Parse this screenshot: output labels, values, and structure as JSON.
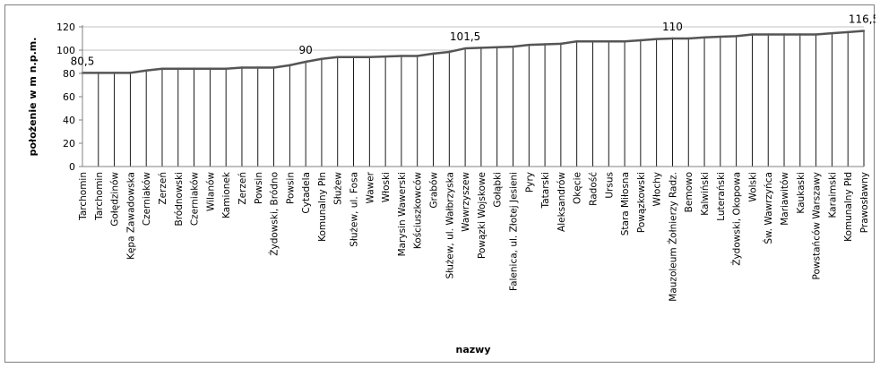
{
  "chart_data": {
    "type": "area",
    "xlabel": "nazwy",
    "ylabel": "położenie w m n.p.m.",
    "ylim": [
      0,
      120
    ],
    "yticks": [
      0,
      20,
      40,
      60,
      80,
      100,
      120
    ],
    "grid": "horizontal",
    "legend": "none",
    "colors": {
      "line": "#555555",
      "fill": "#ffffff",
      "grid": "#c0c0c0"
    },
    "categories": [
      "Tarchomin",
      "Tarchomin",
      "Gołędzinów",
      "Kępa Zawadowska",
      "Czerniaków",
      "Zerzeń",
      "Bródnowski",
      "Czerniaków",
      "Wilanów",
      "Kamionek",
      "Zerzeń",
      "Powsin",
      "Żydowski, Bródno",
      "Powsin",
      "Cytadela",
      "Komunalny Płn",
      "Służew",
      "Służew, ul. Fosa",
      "Wawer",
      "Włoski",
      "Marysin Wawerski",
      "Kościuszkowców",
      "Grabów",
      "Służew, ul. Wałbrzyska",
      "Wawrzyszew",
      "Powązki Wojskowe",
      "Gołąbki",
      "Falenica, ul. Złotej Jesieni",
      "Pyry",
      "Tatarski",
      "Aleksandrów",
      "Okęcie",
      "Radość",
      "Ursus",
      "Stara Miłosna",
      "Powązkowski",
      "Włochy",
      "Mauzoleum Żołnierzy Radz.",
      "Bemowo",
      "Kalwiński",
      "Luterański",
      "Żydowski, Okopowa",
      "Wolski",
      "Św. Wawrzyńca",
      "Mariawitów",
      "Kaukaski",
      "Powstańców Warszawy",
      "Karaimski",
      "Komunalny Płd",
      "Prawosławny"
    ],
    "values": [
      80.5,
      80.5,
      80.5,
      80.5,
      82.5,
      84,
      84,
      84,
      84,
      84,
      85,
      85,
      85,
      87,
      90,
      92.5,
      94,
      94,
      94,
      94.5,
      95,
      95,
      97,
      98.5,
      101.5,
      102,
      102.5,
      103,
      104.5,
      105,
      105.5,
      107.5,
      107.5,
      107.5,
      107.5,
      108.5,
      109.5,
      110,
      110,
      111,
      111.5,
      112,
      113.5,
      113.5,
      113.5,
      113.5,
      113.5,
      114.5,
      115.5,
      116.5
    ],
    "annotations": [
      {
        "index": 0,
        "text": "80,5"
      },
      {
        "index": 14,
        "text": "90"
      },
      {
        "index": 24,
        "text": "101,5"
      },
      {
        "index": 37,
        "text": "110"
      },
      {
        "index": 49,
        "text": "116,5"
      }
    ]
  }
}
